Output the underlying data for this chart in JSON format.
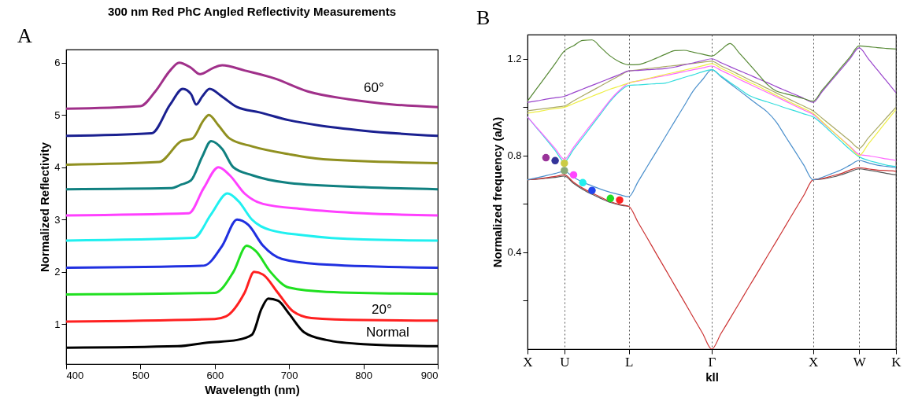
{
  "chart_data": [
    {
      "type": "line",
      "title": "300 nm Red PhC Angled Reflectivity Measurements",
      "xlabel": "Wavelength (nm)",
      "ylabel": "Normalized Reflectivity",
      "xlim": [
        400,
        900
      ],
      "ylim": [
        0.24,
        6.25
      ],
      "xticks": [
        400,
        500,
        600,
        700,
        800,
        900
      ],
      "yticks": [
        1,
        2,
        3,
        4,
        5,
        6
      ],
      "annotations": [
        "A",
        "60°",
        "20°",
        "Normal"
      ],
      "series": [
        {
          "color": "#000000",
          "x": [
            400,
            550,
            590,
            630,
            650,
            663,
            672,
            685,
            700,
            720,
            750,
            800,
            900
          ],
          "values": [
            0.55,
            0.58,
            0.65,
            0.7,
            0.8,
            1.3,
            1.49,
            1.45,
            1.2,
            0.85,
            0.7,
            0.62,
            0.58
          ]
        },
        {
          "color": "#ff2020",
          "x": [
            400,
            600,
            615,
            640,
            653,
            665,
            685,
            705,
            730,
            800,
            900
          ],
          "values": [
            1.05,
            1.1,
            1.15,
            1.6,
            2.0,
            1.95,
            1.6,
            1.25,
            1.12,
            1.08,
            1.07
          ]
        },
        {
          "color": "#20e020",
          "x": [
            400,
            600,
            625,
            643,
            655,
            675,
            700,
            750,
            900
          ],
          "values": [
            1.57,
            1.6,
            2.0,
            2.5,
            2.4,
            2.0,
            1.7,
            1.62,
            1.58
          ]
        },
        {
          "color": "#2030e0",
          "x": [
            400,
            585,
            610,
            630,
            645,
            665,
            690,
            740,
            900
          ],
          "values": [
            2.08,
            2.12,
            2.5,
            3.0,
            2.9,
            2.5,
            2.25,
            2.15,
            2.08
          ]
        },
        {
          "color": "#20f0f0",
          "x": [
            400,
            572,
            595,
            617,
            632,
            650,
            675,
            720,
            800,
            900
          ],
          "values": [
            2.6,
            2.65,
            3.1,
            3.5,
            3.35,
            3.0,
            2.8,
            2.7,
            2.62,
            2.6
          ]
        },
        {
          "color": "#ff40ff",
          "x": [
            400,
            565,
            585,
            605,
            620,
            640,
            665,
            720,
            800,
            900
          ],
          "values": [
            3.08,
            3.12,
            3.6,
            4.0,
            3.85,
            3.5,
            3.3,
            3.2,
            3.12,
            3.08
          ]
        },
        {
          "color": "#108080",
          "x": [
            400,
            540,
            555,
            568,
            583,
            595,
            610,
            625,
            650,
            700,
            800,
            900
          ],
          "values": [
            3.58,
            3.6,
            3.67,
            3.75,
            4.2,
            4.5,
            4.35,
            4.0,
            3.85,
            3.7,
            3.62,
            3.58
          ]
        },
        {
          "color": "#909020",
          "x": [
            400,
            525,
            555,
            570,
            585,
            592,
            605,
            620,
            650,
            700,
            750,
            900
          ],
          "values": [
            4.05,
            4.1,
            4.5,
            4.55,
            4.9,
            5.0,
            4.8,
            4.55,
            4.4,
            4.25,
            4.15,
            4.08
          ]
        },
        {
          "color": "#1a2090",
          "x": [
            400,
            515,
            540,
            557,
            568,
            575,
            583,
            593,
            610,
            630,
            660,
            700,
            740,
            800,
            900
          ],
          "values": [
            4.6,
            4.65,
            5.2,
            5.5,
            5.4,
            5.2,
            5.35,
            5.5,
            5.35,
            5.15,
            5.05,
            4.9,
            4.8,
            4.7,
            4.6
          ]
        },
        {
          "color": "#a0308a",
          "x": [
            400,
            500,
            520,
            540,
            552,
            568,
            580,
            598,
            610,
            640,
            680,
            725,
            780,
            840,
            900
          ],
          "values": [
            5.12,
            5.17,
            5.45,
            5.85,
            6.0,
            5.9,
            5.78,
            5.9,
            5.95,
            5.85,
            5.7,
            5.45,
            5.3,
            5.2,
            5.15
          ]
        }
      ]
    },
    {
      "type": "line",
      "xlabel": "kll",
      "ylabel": "Normalized frequency  (a/λ)",
      "ylim": [
        0,
        1.3
      ],
      "categories": [
        "X",
        null,
        null,
        null,
        "U",
        null,
        null,
        null,
        null,
        null,
        null,
        "L",
        null,
        null,
        null,
        null,
        null,
        null,
        null,
        null,
        "Γ",
        null,
        null,
        null,
        null,
        null,
        null,
        null,
        null,
        null,
        null,
        "X",
        null,
        null,
        null,
        null,
        "W",
        null,
        null,
        null,
        "K"
      ],
      "yticks": [
        {
          "value": 0.2,
          "label": null
        },
        0.4,
        {
          "value": 0.6,
          "label": null
        },
        0.8,
        {
          "value": 1.0,
          "label": null
        },
        1.2
      ],
      "annotations": [
        "B"
      ],
      "grid": "x",
      "series": [
        {
          "color": "#555555",
          "values": [
            0.7,
            0.702,
            0.706,
            0.71,
            0.715,
            0.685,
            0.66,
            0.64,
            0.622,
            0.606,
            0.596,
            0.59,
            null,
            null,
            null,
            null,
            null,
            null,
            null,
            null,
            null,
            null,
            null,
            null,
            null,
            null,
            null,
            null,
            null,
            null,
            null,
            0.7,
            0.703,
            0.71,
            0.72,
            0.733,
            0.745,
            0.74,
            0.733,
            0.726,
            0.72
          ]
        },
        {
          "color": "#cc3333",
          "values": [
            0.7,
            0.703,
            0.708,
            0.714,
            0.72,
            0.69,
            0.665,
            0.645,
            0.627,
            0.61,
            0.598,
            0.59,
            0.524,
            0.459,
            0.393,
            0.328,
            0.262,
            0.197,
            0.131,
            0.066,
            0,
            0.064,
            0.127,
            0.191,
            0.255,
            0.318,
            0.382,
            0.445,
            0.509,
            0.573,
            0.636,
            0.7,
            0.705,
            0.715,
            0.725,
            0.74,
            0.75,
            0.745,
            0.74,
            0.738,
            0.735
          ]
        },
        {
          "color": "#4a8fcc",
          "values": [
            0.7,
            0.708,
            0.717,
            0.726,
            0.735,
            0.71,
            0.69,
            0.675,
            0.66,
            0.648,
            0.638,
            0.63,
            0.692,
            0.755,
            0.817,
            0.88,
            0.943,
            1.005,
            1.068,
            1.114,
            1.155,
            1.126,
            1.097,
            1.068,
            1.039,
            1.01,
            0.981,
            0.939,
            0.879,
            0.82,
            0.76,
            0.7,
            0.71,
            0.725,
            0.74,
            0.76,
            0.78,
            0.77,
            0.76,
            0.755,
            0.75
          ]
        },
        {
          "color": "#33dddd",
          "values": [
            0.96,
            0.914,
            0.868,
            0.821,
            0.775,
            0.825,
            0.875,
            0.925,
            0.975,
            1.025,
            1.065,
            1.09,
            1.092,
            1.095,
            1.097,
            1.1,
            1.111,
            1.123,
            1.134,
            1.146,
            1.155,
            1.129,
            1.102,
            1.076,
            1.05,
            1.034,
            1.022,
            1.01,
            0.997,
            0.985,
            0.972,
            0.96,
            0.93,
            0.895,
            0.86,
            0.825,
            0.795,
            0.78,
            0.77,
            0.76,
            0.755
          ]
        },
        {
          "color": "#ff66ff",
          "values": [
            0.96,
            0.916,
            0.873,
            0.829,
            0.785,
            0.834,
            0.884,
            0.933,
            0.982,
            1.031,
            1.07,
            1.1,
            1.108,
            1.116,
            1.124,
            1.131,
            1.139,
            1.147,
            1.155,
            1.162,
            1.17,
            1.152,
            1.134,
            1.115,
            1.097,
            1.079,
            1.061,
            1.043,
            1.025,
            1.006,
            0.988,
            0.97,
            0.937,
            0.904,
            0.871,
            0.838,
            0.805,
            0.799,
            0.793,
            0.786,
            0.78
          ]
        },
        {
          "color": "#eeee44",
          "values": [
            0.975,
            0.981,
            0.988,
            0.994,
            1.0,
            1.015,
            1.03,
            1.045,
            1.06,
            1.075,
            1.087,
            1.1,
            1.109,
            1.118,
            1.127,
            1.136,
            1.144,
            1.153,
            1.162,
            1.171,
            1.18,
            1.161,
            1.143,
            1.124,
            1.105,
            1.087,
            1.068,
            1.049,
            1.031,
            1.012,
            0.994,
            0.975,
            0.94,
            0.905,
            0.87,
            0.835,
            0.8,
            0.848,
            0.895,
            0.943,
            0.99
          ]
        },
        {
          "color": "#aaaa66",
          "values": [
            0.985,
            0.99,
            0.995,
            1.0,
            1.005,
            1.026,
            1.047,
            1.068,
            1.089,
            1.11,
            1.13,
            1.15,
            1.154,
            1.159,
            1.163,
            1.168,
            1.172,
            1.177,
            1.181,
            1.186,
            1.19,
            1.171,
            1.153,
            1.134,
            1.115,
            1.097,
            1.078,
            1.059,
            1.041,
            1.022,
            1.004,
            0.985,
            0.954,
            0.923,
            0.892,
            0.861,
            0.83,
            0.873,
            0.915,
            0.958,
            1.0
          ]
        },
        {
          "color": "#9944cc",
          "values": [
            1.02,
            1.026,
            1.033,
            1.039,
            1.045,
            1.06,
            1.075,
            1.09,
            1.105,
            1.12,
            1.135,
            1.15,
            1.152,
            1.155,
            1.157,
            1.16,
            1.166,
            1.175,
            1.183,
            1.192,
            1.2,
            1.184,
            1.167,
            1.151,
            1.135,
            1.118,
            1.102,
            1.085,
            1.069,
            1.053,
            1.036,
            1.02,
            1.065,
            1.11,
            1.155,
            1.2,
            1.245,
            1.2,
            1.153,
            1.107,
            1.06
          ]
        },
        {
          "color": "#558833",
          "values": [
            1.025,
            1.077,
            1.128,
            1.18,
            1.232,
            1.254,
            1.276,
            1.278,
            1.245,
            1.211,
            1.187,
            1.175,
            1.176,
            1.187,
            1.203,
            1.219,
            1.234,
            1.235,
            1.227,
            1.219,
            1.211,
            1.237,
            1.263,
            1.223,
            1.181,
            1.138,
            1.095,
            1.067,
            1.056,
            1.046,
            1.035,
            1.025,
            1.071,
            1.116,
            1.162,
            1.207,
            1.253,
            1.25,
            1.246,
            1.243,
            1.24
          ]
        },
        {
          "type": "scatter",
          "marker": "circle",
          "values": [
            null,
            null,
            0.791,
            0.779,
            0.768,
            0.72,
            0.688,
            0.656,
            null,
            0.623,
            0.616,
            null,
            null,
            null,
            null,
            null,
            null,
            null,
            null,
            null,
            null,
            null,
            null,
            null,
            null,
            null,
            null,
            null,
            null,
            null,
            null,
            null,
            null,
            null,
            null,
            null,
            null,
            null,
            null,
            null,
            null
          ],
          "colors": [
            null,
            null,
            "#993399",
            "#333399",
            "#cccc44",
            "#ff44ff",
            "#22eeee",
            "#2244ee",
            null,
            "#22dd22",
            "#ff2222",
            null,
            null,
            null,
            null,
            null,
            null,
            null,
            null,
            null,
            null,
            null,
            null,
            null,
            null,
            null,
            null,
            null,
            null,
            null,
            null,
            null,
            null,
            null,
            null,
            null,
            null,
            null,
            null,
            null,
            null
          ]
        },
        {
          "type": "scatter",
          "marker": "circle",
          "color": "#88aa77",
          "values": [
            null,
            null,
            null,
            null,
            0.738,
            null,
            null,
            null,
            null,
            null,
            null,
            null,
            null,
            null,
            null,
            null,
            null,
            null,
            null,
            null,
            null,
            null,
            null,
            null,
            null,
            null,
            null,
            null,
            null,
            null,
            null,
            null,
            null,
            null,
            null,
            null,
            null,
            null,
            null,
            null,
            null
          ]
        }
      ]
    }
  ]
}
